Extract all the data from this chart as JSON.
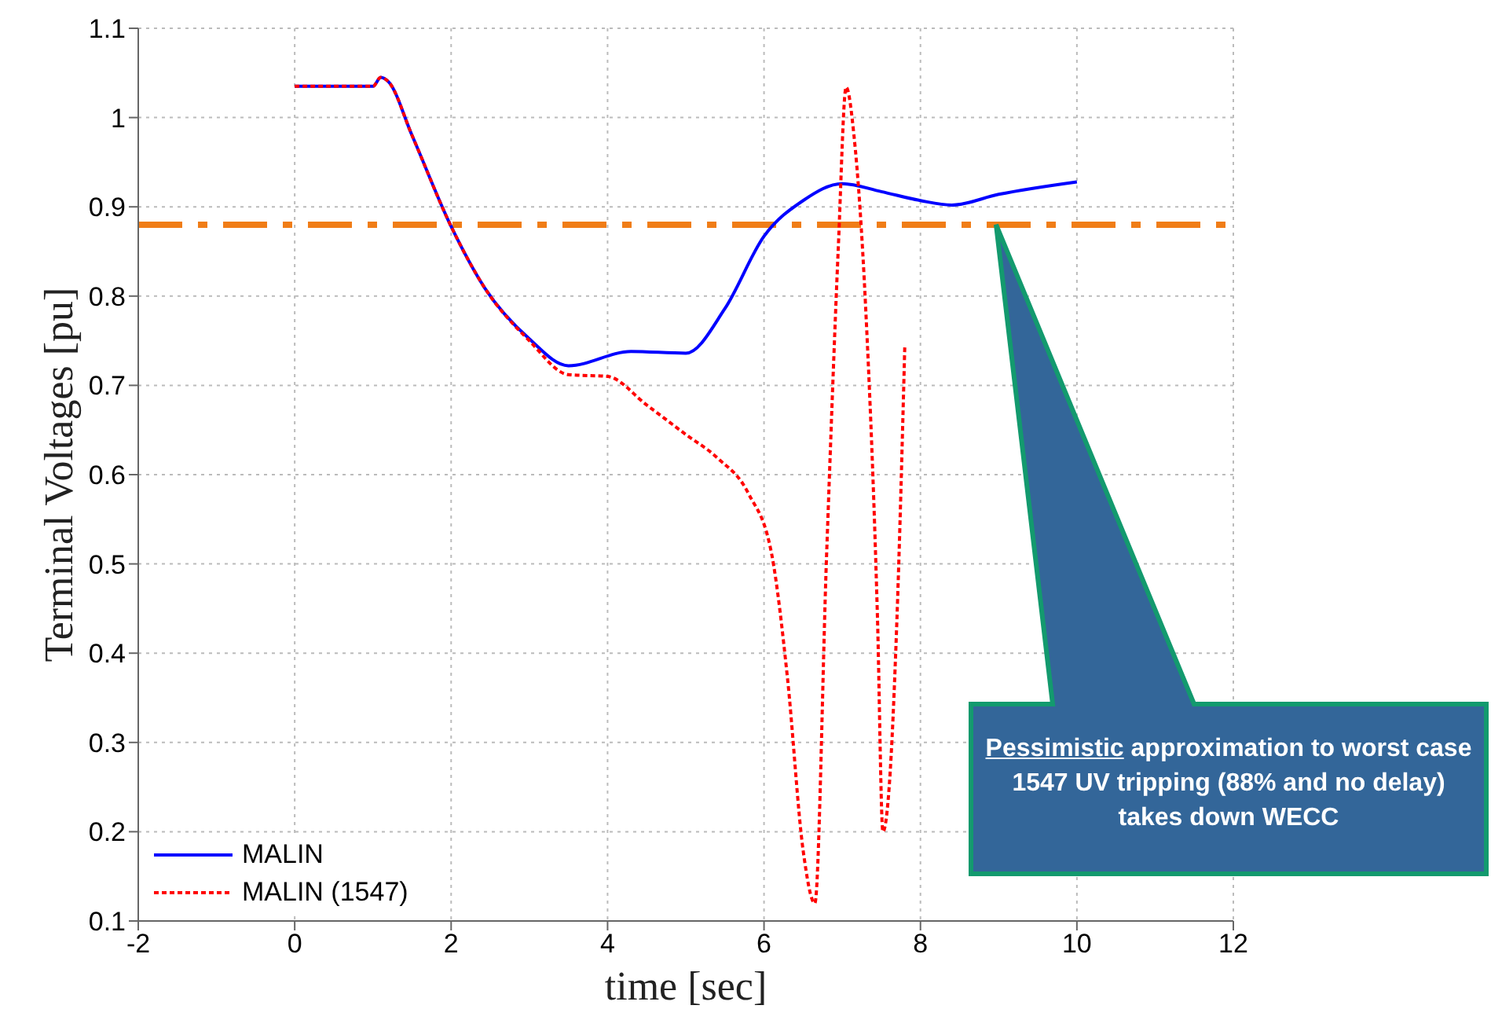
{
  "chart_data": {
    "type": "line",
    "xlabel": "time [sec]",
    "ylabel": "Terminal Voltages [pu]",
    "xlim": [
      -2,
      12
    ],
    "xticks": [
      -2,
      0,
      2,
      4,
      6,
      8,
      10,
      12
    ],
    "ylim": [
      0.1,
      1.1
    ],
    "yticks": [
      0.1,
      0.2,
      0.3,
      0.4,
      0.5,
      0.6,
      0.7,
      0.8,
      0.9,
      1,
      1.1
    ],
    "grid": true,
    "legend": "bottom left",
    "marker": "none",
    "series": [
      {
        "name": "MALIN",
        "color": "#0000ff",
        "line_style": "solid",
        "x": [
          0,
          0.5,
          1.0,
          1.1,
          1.2,
          1.5,
          2,
          2.43,
          3,
          3.5,
          4.3,
          5,
          5.5,
          6,
          6.5,
          7,
          7.5,
          8,
          8.4,
          9,
          10
        ],
        "values": [
          1.035,
          1.035,
          1.035,
          1.045,
          1.04,
          0.98,
          0.878,
          0.809,
          0.752,
          0.722,
          0.738,
          0.736,
          0.786,
          0.867,
          0.907,
          0.926,
          0.917,
          0.907,
          0.902,
          0.914,
          0.928
        ]
      },
      {
        "name": "MALIN (1547)",
        "color": "#ff0000",
        "line_style": "dotted",
        "x": [
          0,
          0.5,
          1.0,
          1.1,
          1.2,
          1.5,
          2,
          2.43,
          3,
          3.5,
          4,
          4.5,
          5,
          5.4,
          5.8,
          6.1,
          6.3,
          6.5,
          6.65,
          6.8,
          6.95,
          7.05,
          7.15,
          7.3,
          7.45,
          7.52,
          7.6,
          7.7,
          7.8
        ],
        "values": [
          1.035,
          1.035,
          1.035,
          1.045,
          1.04,
          0.98,
          0.878,
          0.809,
          0.75,
          0.712,
          0.71,
          0.678,
          0.645,
          0.619,
          0.579,
          0.51,
          0.372,
          0.179,
          0.12,
          0.51,
          0.855,
          1.034,
          0.98,
          0.786,
          0.441,
          0.2,
          0.25,
          0.44,
          0.745
        ]
      }
    ],
    "ref_lines": [
      {
        "axis": "y",
        "value": 0.88,
        "color": "#f07d17",
        "line_style": "dashdot"
      }
    ],
    "annotations": [
      "Pessimistic approximation  to worst case 1547 UV tripping (88% and no delay) takes down WECC"
    ]
  }
}
